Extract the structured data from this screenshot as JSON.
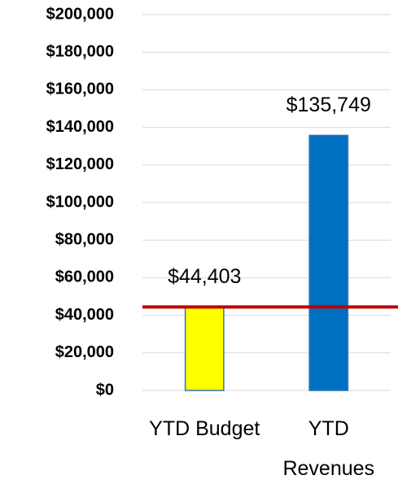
{
  "chart_data": {
    "type": "bar",
    "categories": [
      "YTD Budget",
      "YTD Revenues"
    ],
    "values": [
      44403,
      135749
    ],
    "value_labels": [
      "$44,403",
      "$135,749"
    ],
    "colors": [
      "#ffff00",
      "#0070c0"
    ],
    "edge_color": "#2e75b6",
    "target_line_color": "#c00000",
    "ylim": [
      0,
      200000
    ],
    "yticks": [
      {
        "value": 0,
        "label": "$0"
      },
      {
        "value": 20000,
        "label": "$20,000"
      },
      {
        "value": 40000,
        "label": "$40,000"
      },
      {
        "value": 60000,
        "label": "$60,000"
      },
      {
        "value": 80000,
        "label": "$80,000"
      },
      {
        "value": 100000,
        "label": "$100,000"
      },
      {
        "value": 120000,
        "label": "$120,000"
      },
      {
        "value": 140000,
        "label": "$140,000"
      },
      {
        "value": 160000,
        "label": "$160,000"
      },
      {
        "value": 180000,
        "label": "$180,000"
      },
      {
        "value": 200000,
        "label": "$200,000"
      }
    ],
    "grid": true
  }
}
